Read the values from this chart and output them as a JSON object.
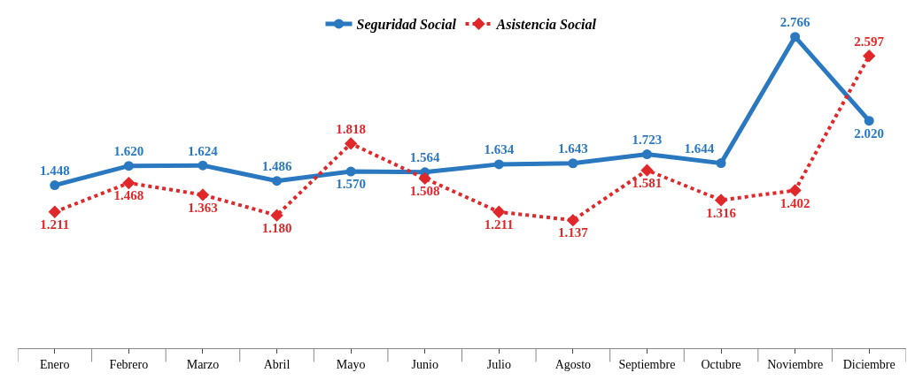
{
  "chart_data": {
    "type": "line",
    "categories": [
      "Enero",
      "Febrero",
      "Marzo",
      "Abril",
      "Mayo",
      "Junio",
      "Julio",
      "Agosto",
      "Septiembre",
      "Octubre",
      "Noviembre",
      "Diciembre"
    ],
    "series": [
      {
        "name": "Seguridad Social",
        "color": "#2a78c0",
        "marker": "circle",
        "line_style": "solid",
        "values": [
          1.448,
          1.62,
          1.624,
          1.486,
          1.57,
          1.564,
          1.634,
          1.643,
          1.723,
          1.644,
          2.766,
          2.02
        ],
        "value_labels": [
          "1.448",
          "1.620",
          "1.624",
          "1.486",
          "1.570",
          "1.564",
          "1.634",
          "1.643",
          "1.723",
          "1.644",
          "2.766",
          "2.020"
        ]
      },
      {
        "name": "Asistencia Social",
        "color": "#e0282a",
        "marker": "diamond",
        "line_style": "dotted",
        "values": [
          1.211,
          1.468,
          1.363,
          1.18,
          1.818,
          1.508,
          1.211,
          1.137,
          1.581,
          1.316,
          1.402,
          2.597
        ],
        "value_labels": [
          "1.211",
          "1.468",
          "1.363",
          "1.180",
          "1.818",
          "1.508",
          "1.211",
          "1.137",
          "1.581",
          "1.316",
          "1.402",
          "2.597"
        ]
      }
    ],
    "legend": "top"
  }
}
